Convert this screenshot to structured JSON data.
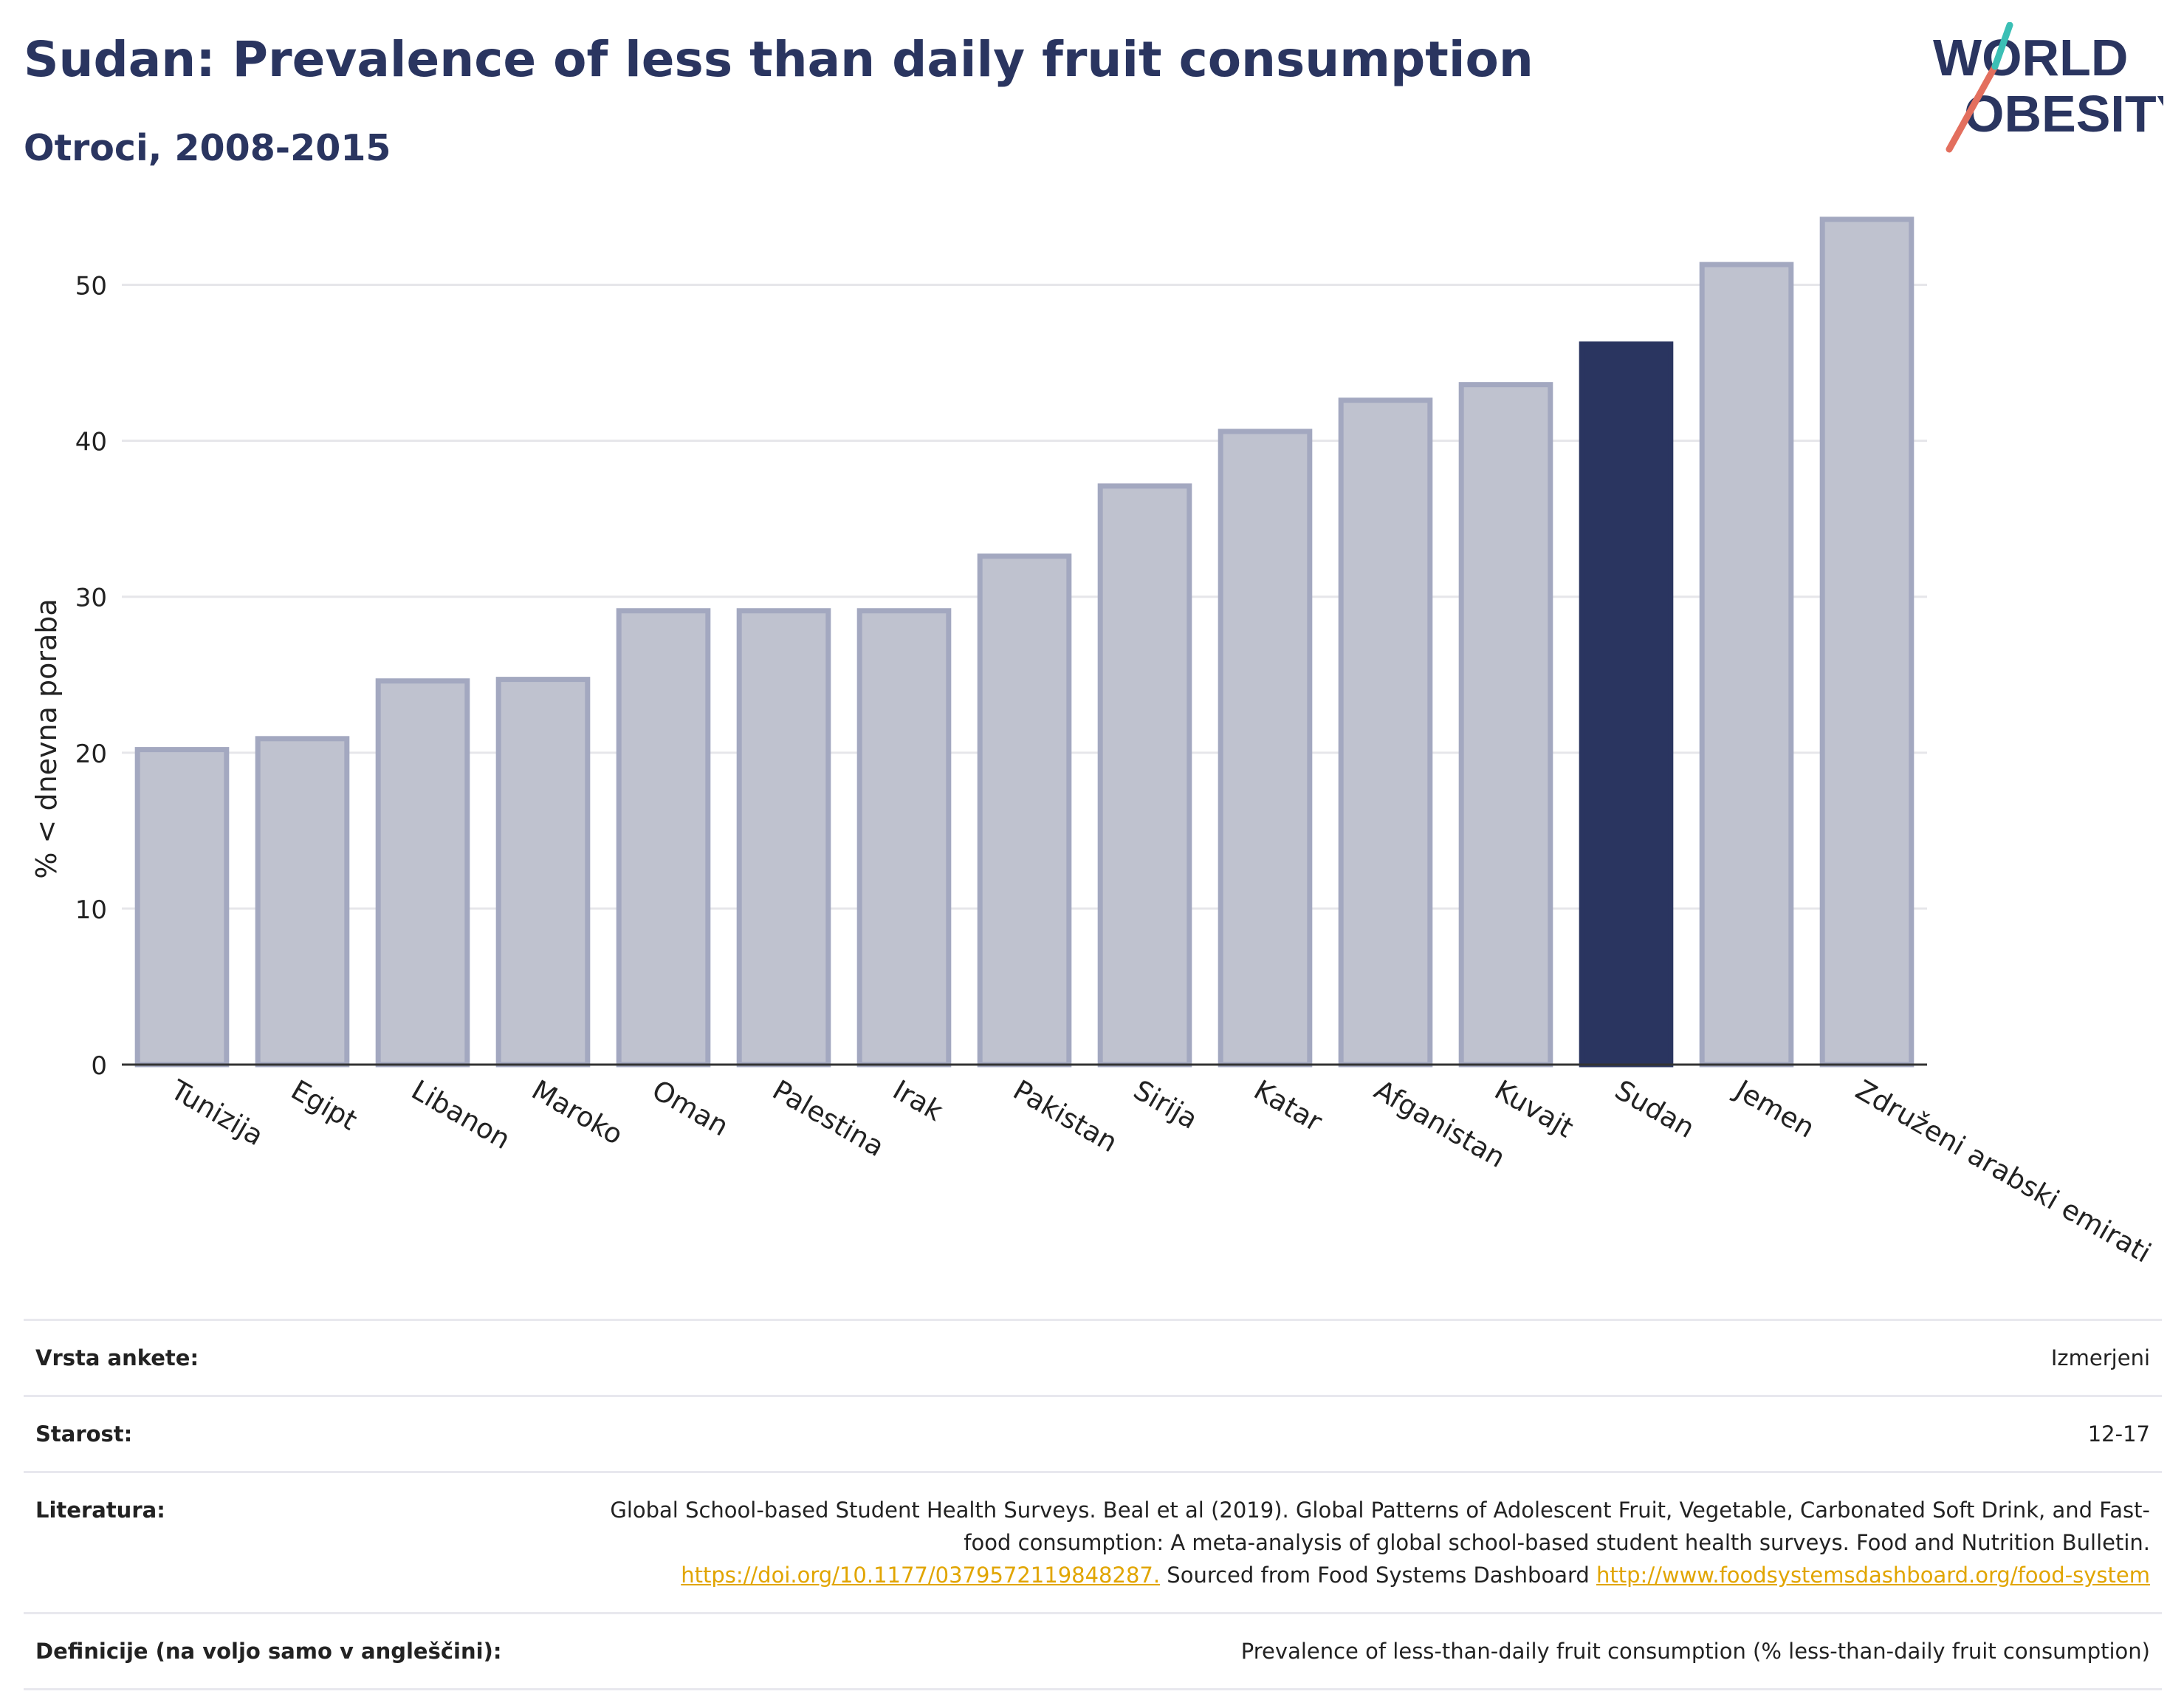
{
  "header": {
    "title": "Sudan: Prevalence of less than daily fruit consumption",
    "subtitle": "Otroci, 2008-2015"
  },
  "logo": {
    "line1": "WORLD",
    "line2": "OBESITY"
  },
  "chart_data": {
    "type": "bar",
    "ylabel": "% < dnevna poraba",
    "ylim": [
      0,
      55
    ],
    "yticks": [
      0,
      10,
      20,
      30,
      40,
      50
    ],
    "grid": true,
    "categories": [
      "Tunizija",
      "Egipt",
      "Libanon",
      "Maroko",
      "Oman",
      "Palestina",
      "Irak",
      "Pakistan",
      "Sirija",
      "Katar",
      "Afganistan",
      "Kuvajt",
      "Sudan",
      "Jemen",
      "Združeni arabski emirati"
    ],
    "values": [
      20.2,
      20.9,
      24.6,
      24.7,
      29.1,
      29.1,
      29.1,
      32.6,
      37.1,
      40.6,
      42.6,
      43.6,
      46.2,
      51.3,
      54.2
    ],
    "highlight": "Sudan",
    "colors": {
      "bar": "#bfc2cf",
      "bar_edge": "#a3a8c0",
      "highlight": "#2a3560",
      "grid": "#e6e6ea",
      "axis": "#333333"
    }
  },
  "meta": {
    "survey_label": "Vrsta ankete:",
    "survey_value": "Izmerjeni",
    "age_label": "Starost:",
    "age_value": "12-17",
    "ref_label": "Literatura:",
    "ref_text": "Global School-based Student Health Surveys. Beal et al (2019). Global Patterns of Adolescent Fruit, Vegetable, Carbonated Soft Drink, and Fast-food consumption: A meta-analysis of global school-based student health surveys. Food and Nutrition Bulletin.",
    "ref_link1": "https://doi.org/10.1177/0379572119848287.",
    "ref_mid": "Sourced from Food Systems Dashboard",
    "ref_link2": "http://www.foodsystemsdashboard.org/food-system",
    "def_label": "Definicije (na voljo samo v angleščini):",
    "def_value": "Prevalence of less-than-daily fruit consumption (% less-than-daily fruit consumption)"
  }
}
